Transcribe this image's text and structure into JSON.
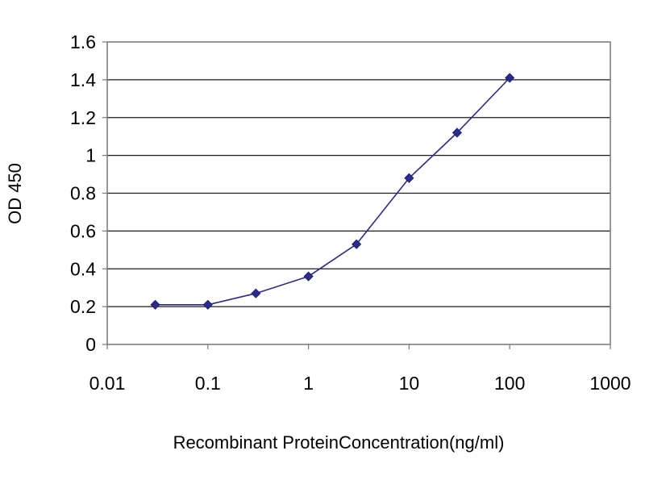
{
  "chart_data": {
    "type": "line",
    "title": "",
    "xlabel": "Recombinant ProteinConcentration(ng/ml)",
    "ylabel": "OD 450",
    "x_scale": "log",
    "xlim": [
      0.01,
      1000
    ],
    "ylim": [
      0,
      1.6
    ],
    "x_ticks": [
      "0.01",
      "0.1",
      "1",
      "10",
      "100",
      "1000"
    ],
    "y_ticks": [
      "0",
      "0.2",
      "0.4",
      "0.6",
      "0.8",
      "1",
      "1.2",
      "1.4",
      "1.6"
    ],
    "grid": "horizontal",
    "legend": "none",
    "series": [
      {
        "color": "#2b2b8c",
        "x": [
          0.03,
          0.1,
          0.3,
          1,
          3,
          10,
          30,
          100
        ],
        "y": [
          0.21,
          0.21,
          0.27,
          0.36,
          0.53,
          0.88,
          1.12,
          1.41
        ]
      }
    ]
  }
}
